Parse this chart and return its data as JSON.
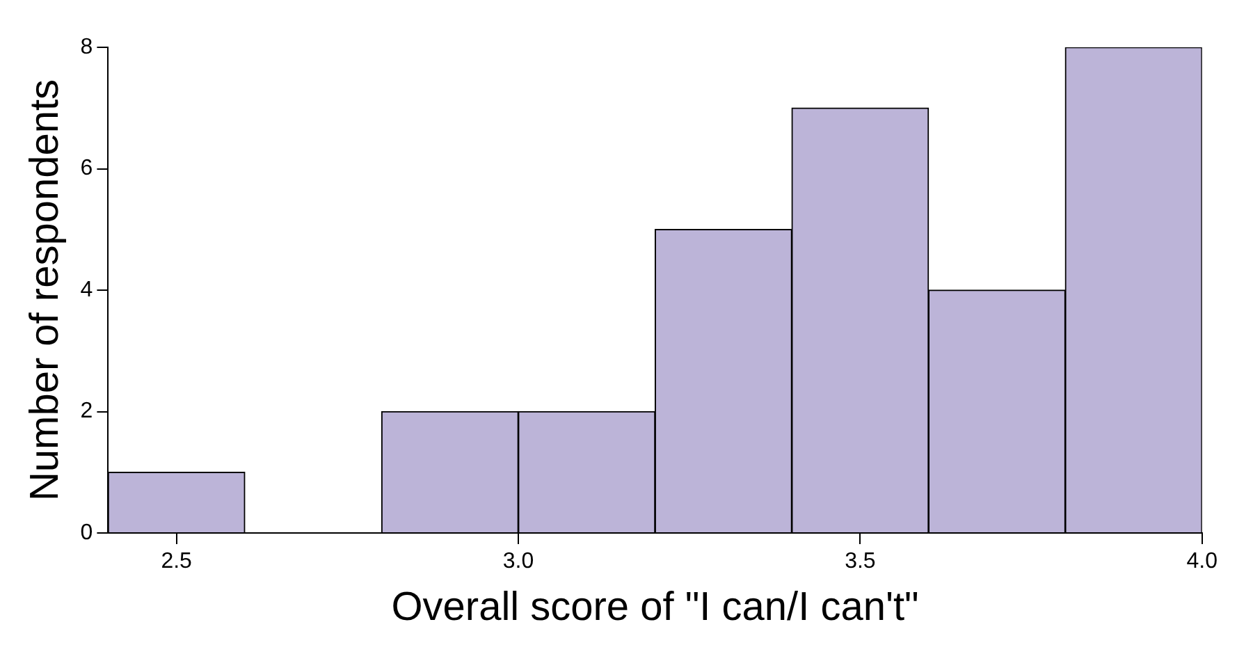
{
  "chart_data": {
    "type": "histogram",
    "xlabel": "Overall score of \"I can/I can't\"",
    "ylabel": "Number of respondents",
    "bins": [
      2.4,
      2.6,
      2.8,
      3.0,
      3.2,
      3.4,
      3.6,
      3.8,
      4.0
    ],
    "values": [
      1,
      0,
      2,
      2,
      5,
      7,
      4,
      8
    ],
    "color": "#bcb4d8",
    "xlim": [
      2.4,
      4.0
    ],
    "xticks": [
      2.5,
      {
        "value": 3,
        "label": "3.0"
      },
      3.5,
      {
        "value": 4,
        "label": "4.0"
      }
    ],
    "ylim": [
      0,
      8
    ],
    "yticks": [
      0,
      2,
      4,
      6,
      8
    ]
  }
}
